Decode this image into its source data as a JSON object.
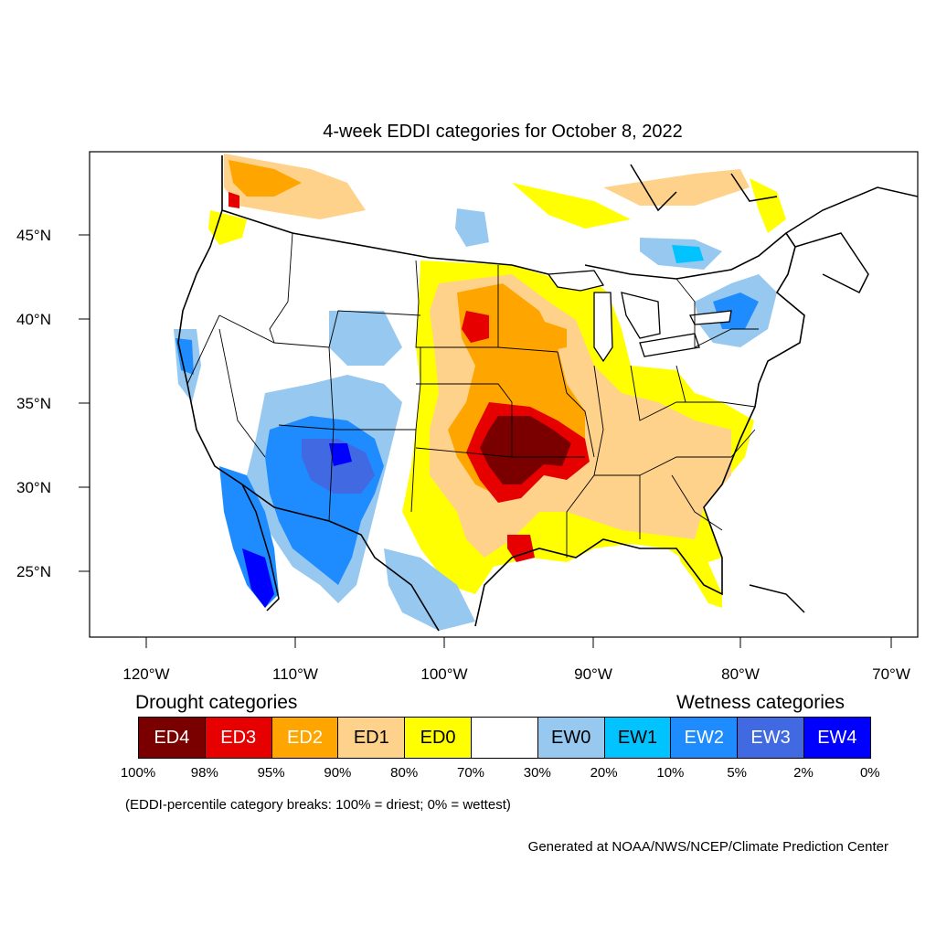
{
  "map": {
    "title": "4-week EDDI categories for October 8, 2022",
    "lat_labels": [
      "45°N",
      "40°N",
      "35°N",
      "30°N",
      "25°N"
    ],
    "lon_labels": [
      "120°W",
      "110°W",
      "100°W",
      "90°W",
      "80°W",
      "70°W"
    ]
  },
  "legend": {
    "drought_title": "Drought categories",
    "wetness_title": "Wetness categories",
    "categories": [
      {
        "label": "ED4",
        "color": "#7a0000",
        "text_color": "#ffffff"
      },
      {
        "label": "ED3",
        "color": "#e60000",
        "text_color": "#ffffff"
      },
      {
        "label": "ED2",
        "color": "#ffa500",
        "text_color": "#ffffff"
      },
      {
        "label": "ED1",
        "color": "#ffd28c",
        "text_color": "#000000"
      },
      {
        "label": "ED0",
        "color": "#ffff00",
        "text_color": "#000000"
      },
      {
        "label": "",
        "color": "#ffffff",
        "text_color": "#000000"
      },
      {
        "label": "EW0",
        "color": "#96c8f0",
        "text_color": "#000000"
      },
      {
        "label": "EW1",
        "color": "#00c3ff",
        "text_color": "#000000"
      },
      {
        "label": "EW2",
        "color": "#1e8cff",
        "text_color": "#ffffff"
      },
      {
        "label": "EW3",
        "color": "#4169e1",
        "text_color": "#ffffff"
      },
      {
        "label": "EW4",
        "color": "#0000ff",
        "text_color": "#ffffff"
      }
    ],
    "percentiles": [
      "100%",
      "98%",
      "95%",
      "90%",
      "80%",
      "70%",
      "30%",
      "20%",
      "10%",
      "5%",
      "2%",
      "0%"
    ],
    "note": "(EDDI-percentile category breaks: 100% = driest; 0% = wettest)"
  },
  "credit": "Generated at NOAA/NWS/NCEP/Climate Prediction Center"
}
